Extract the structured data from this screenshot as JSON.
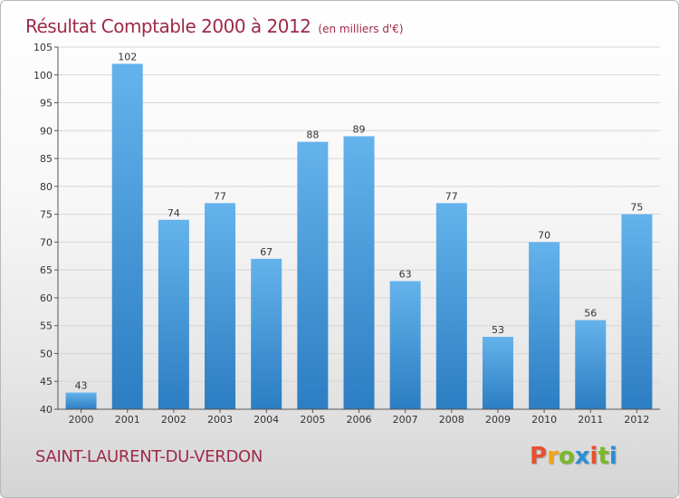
{
  "title": {
    "main": "Résultat Comptable 2000 à 2012",
    "unit": "(en milliers d'€)"
  },
  "footer": {
    "commune": "SAINT-LAURENT-DU-VERDON",
    "logo_text": "Proxiti"
  },
  "colors": {
    "title": "#9e2a4a",
    "bar_top": "#64b3ec",
    "bar_bottom": "#2c7dc2",
    "grid": "#d6d6d6",
    "logo": [
      "#e8502e",
      "#f2a517",
      "#7bb928",
      "#2a8fd6",
      "#e8502e",
      "#7bb928",
      "#2a8fd6"
    ]
  },
  "chart_data": {
    "type": "bar",
    "title": "Résultat Comptable 2000 à 2012",
    "subtitle": "(en milliers d'€)",
    "xlabel": "",
    "ylabel": "",
    "categories": [
      "2000",
      "2001",
      "2002",
      "2003",
      "2004",
      "2005",
      "2006",
      "2007",
      "2008",
      "2009",
      "2010",
      "2011",
      "2012"
    ],
    "values": [
      43,
      102,
      74,
      77,
      67,
      88,
      89,
      63,
      77,
      53,
      70,
      56,
      75
    ],
    "ylim": [
      40,
      105
    ],
    "yticks": [
      40,
      45,
      50,
      55,
      60,
      65,
      70,
      75,
      80,
      85,
      90,
      95,
      100,
      105
    ],
    "grid": true,
    "legend": "none"
  }
}
